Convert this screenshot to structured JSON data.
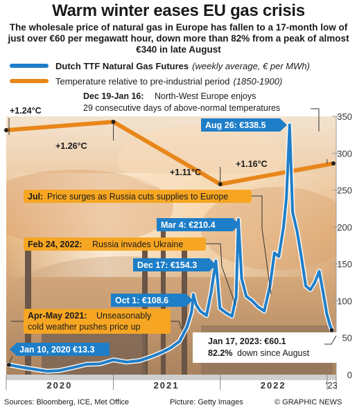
{
  "header": {
    "title": "Warm winter eases EU gas crisis",
    "subtitle": "The wholesale price of natural gas in Europe has fallen to a 17-month low of just over €60 per megawatt hour, down more than 82% from a peak of almost €340 in late August"
  },
  "legend": {
    "gas_name": "Dutch TTF Natural Gas Futures",
    "gas_note": "(weekly average, € per MWh)",
    "temp_name": "Temperature relative to pre-industrial period",
    "temp_note": "(1850-1900)"
  },
  "colors": {
    "gas_line": "#1e7ec8",
    "temperature_line": "#e8861a",
    "label_box": "#f6a623",
    "price_box": "#1e7ec8",
    "grid": "#cccccc",
    "text": "#1a1a1a"
  },
  "annotations": {
    "winter_head": "Dec 19-Jan 16:",
    "winter_text1": "North-West Europe enjoys",
    "winter_text2": "29 consecutive days of above-normal temperatures",
    "jul_head": "Jul:",
    "jul_text": "Price surges as Russia cuts supplies to Europe",
    "feb_head": "Feb 24, 2022:",
    "feb_text": "Russia invades Ukraine",
    "apr_head": "Apr-May 2021:",
    "apr_text1": "Unseasonably",
    "apr_text2": "cold weather pushes price up",
    "jan23_head": "Jan 17, 2023: €60.1",
    "jan23_pct": "82.2%",
    "jan23_text": "down since August"
  },
  "chart_data": {
    "type": "line",
    "title": "",
    "xlabel": "",
    "ylabel": "",
    "ylim": [
      0,
      350
    ],
    "y_ticks": [
      0,
      50,
      100,
      150,
      200,
      250,
      300,
      350
    ],
    "x_ticks": [
      "2020",
      "2021",
      "2022",
      "'23"
    ],
    "grid": true,
    "legend_position": "top-left",
    "series": [
      {
        "name": "Dutch TTF Natural Gas Futures",
        "axis": "right",
        "x": [
          "2020-01-10",
          "2020-02-15",
          "2020-04-01",
          "2020-05-20",
          "2020-07-01",
          "2020-08-15",
          "2020-10-01",
          "2020-11-15",
          "2021-01-01",
          "2021-02-15",
          "2021-04-01",
          "2021-05-15",
          "2021-06-15",
          "2021-07-15",
          "2021-08-15",
          "2021-09-10",
          "2021-09-25",
          "2021-10-01",
          "2021-10-10",
          "2021-10-25",
          "2021-11-15",
          "2021-12-01",
          "2021-12-17",
          "2021-12-31",
          "2022-01-20",
          "2022-02-10",
          "2022-02-24",
          "2022-03-04",
          "2022-03-15",
          "2022-03-31",
          "2022-04-20",
          "2022-05-10",
          "2022-05-31",
          "2022-06-20",
          "2022-07-05",
          "2022-07-20",
          "2022-08-05",
          "2022-08-15",
          "2022-08-26",
          "2022-09-05",
          "2022-09-20",
          "2022-10-05",
          "2022-10-20",
          "2022-11-05",
          "2022-11-20",
          "2022-12-05",
          "2022-12-19",
          "2022-12-31",
          "2023-01-10",
          "2023-01-17"
        ],
        "values": [
          13.3,
          10.5,
          7.5,
          4.5,
          5.5,
          9.5,
          14,
          14.5,
          20,
          17,
          19,
          25,
          30,
          36,
          45,
          65,
          85,
          108.6,
          95,
          86,
          80,
          112,
          154.3,
          90,
          84,
          79,
          105,
          210.4,
          130,
          106,
          100,
          92,
          86,
          120,
          165,
          160,
          200,
          240,
          338.5,
          220,
          195,
          160,
          120,
          115,
          125,
          140,
          110,
          82,
          68,
          60.1
        ]
      },
      {
        "name": "Temperature relative to pre-industrial period",
        "axis": "none",
        "x": [
          "2020-01-01",
          "2021-01-01",
          "2022-01-01",
          "2023-01-01"
        ],
        "values": [
          1.24,
          1.26,
          1.11,
          1.16
        ],
        "labels": [
          "+1.24°C",
          "+1.26°C",
          "+1.11°C",
          "+1.16°C"
        ]
      }
    ],
    "point_labels": [
      {
        "text": "Jan 10, 2020 €13.3",
        "date": "2020-01-10",
        "value": 13.3
      },
      {
        "text": "Oct 1: €108.6",
        "date": "2021-10-01",
        "value": 108.6
      },
      {
        "text": "Dec 17: €154.3",
        "date": "2021-12-17",
        "value": 154.3
      },
      {
        "text": "Mar 4: €210.4",
        "date": "2022-03-04",
        "value": 210.4
      },
      {
        "text": "Aug 26: €338.5",
        "date": "2022-08-26",
        "value": 338.5
      }
    ]
  },
  "footer": {
    "sources": "Sources: Bloomberg, ICE, Met Office",
    "picture": "Picture: Getty Images",
    "credit": "© GRAPHIC NEWS"
  }
}
